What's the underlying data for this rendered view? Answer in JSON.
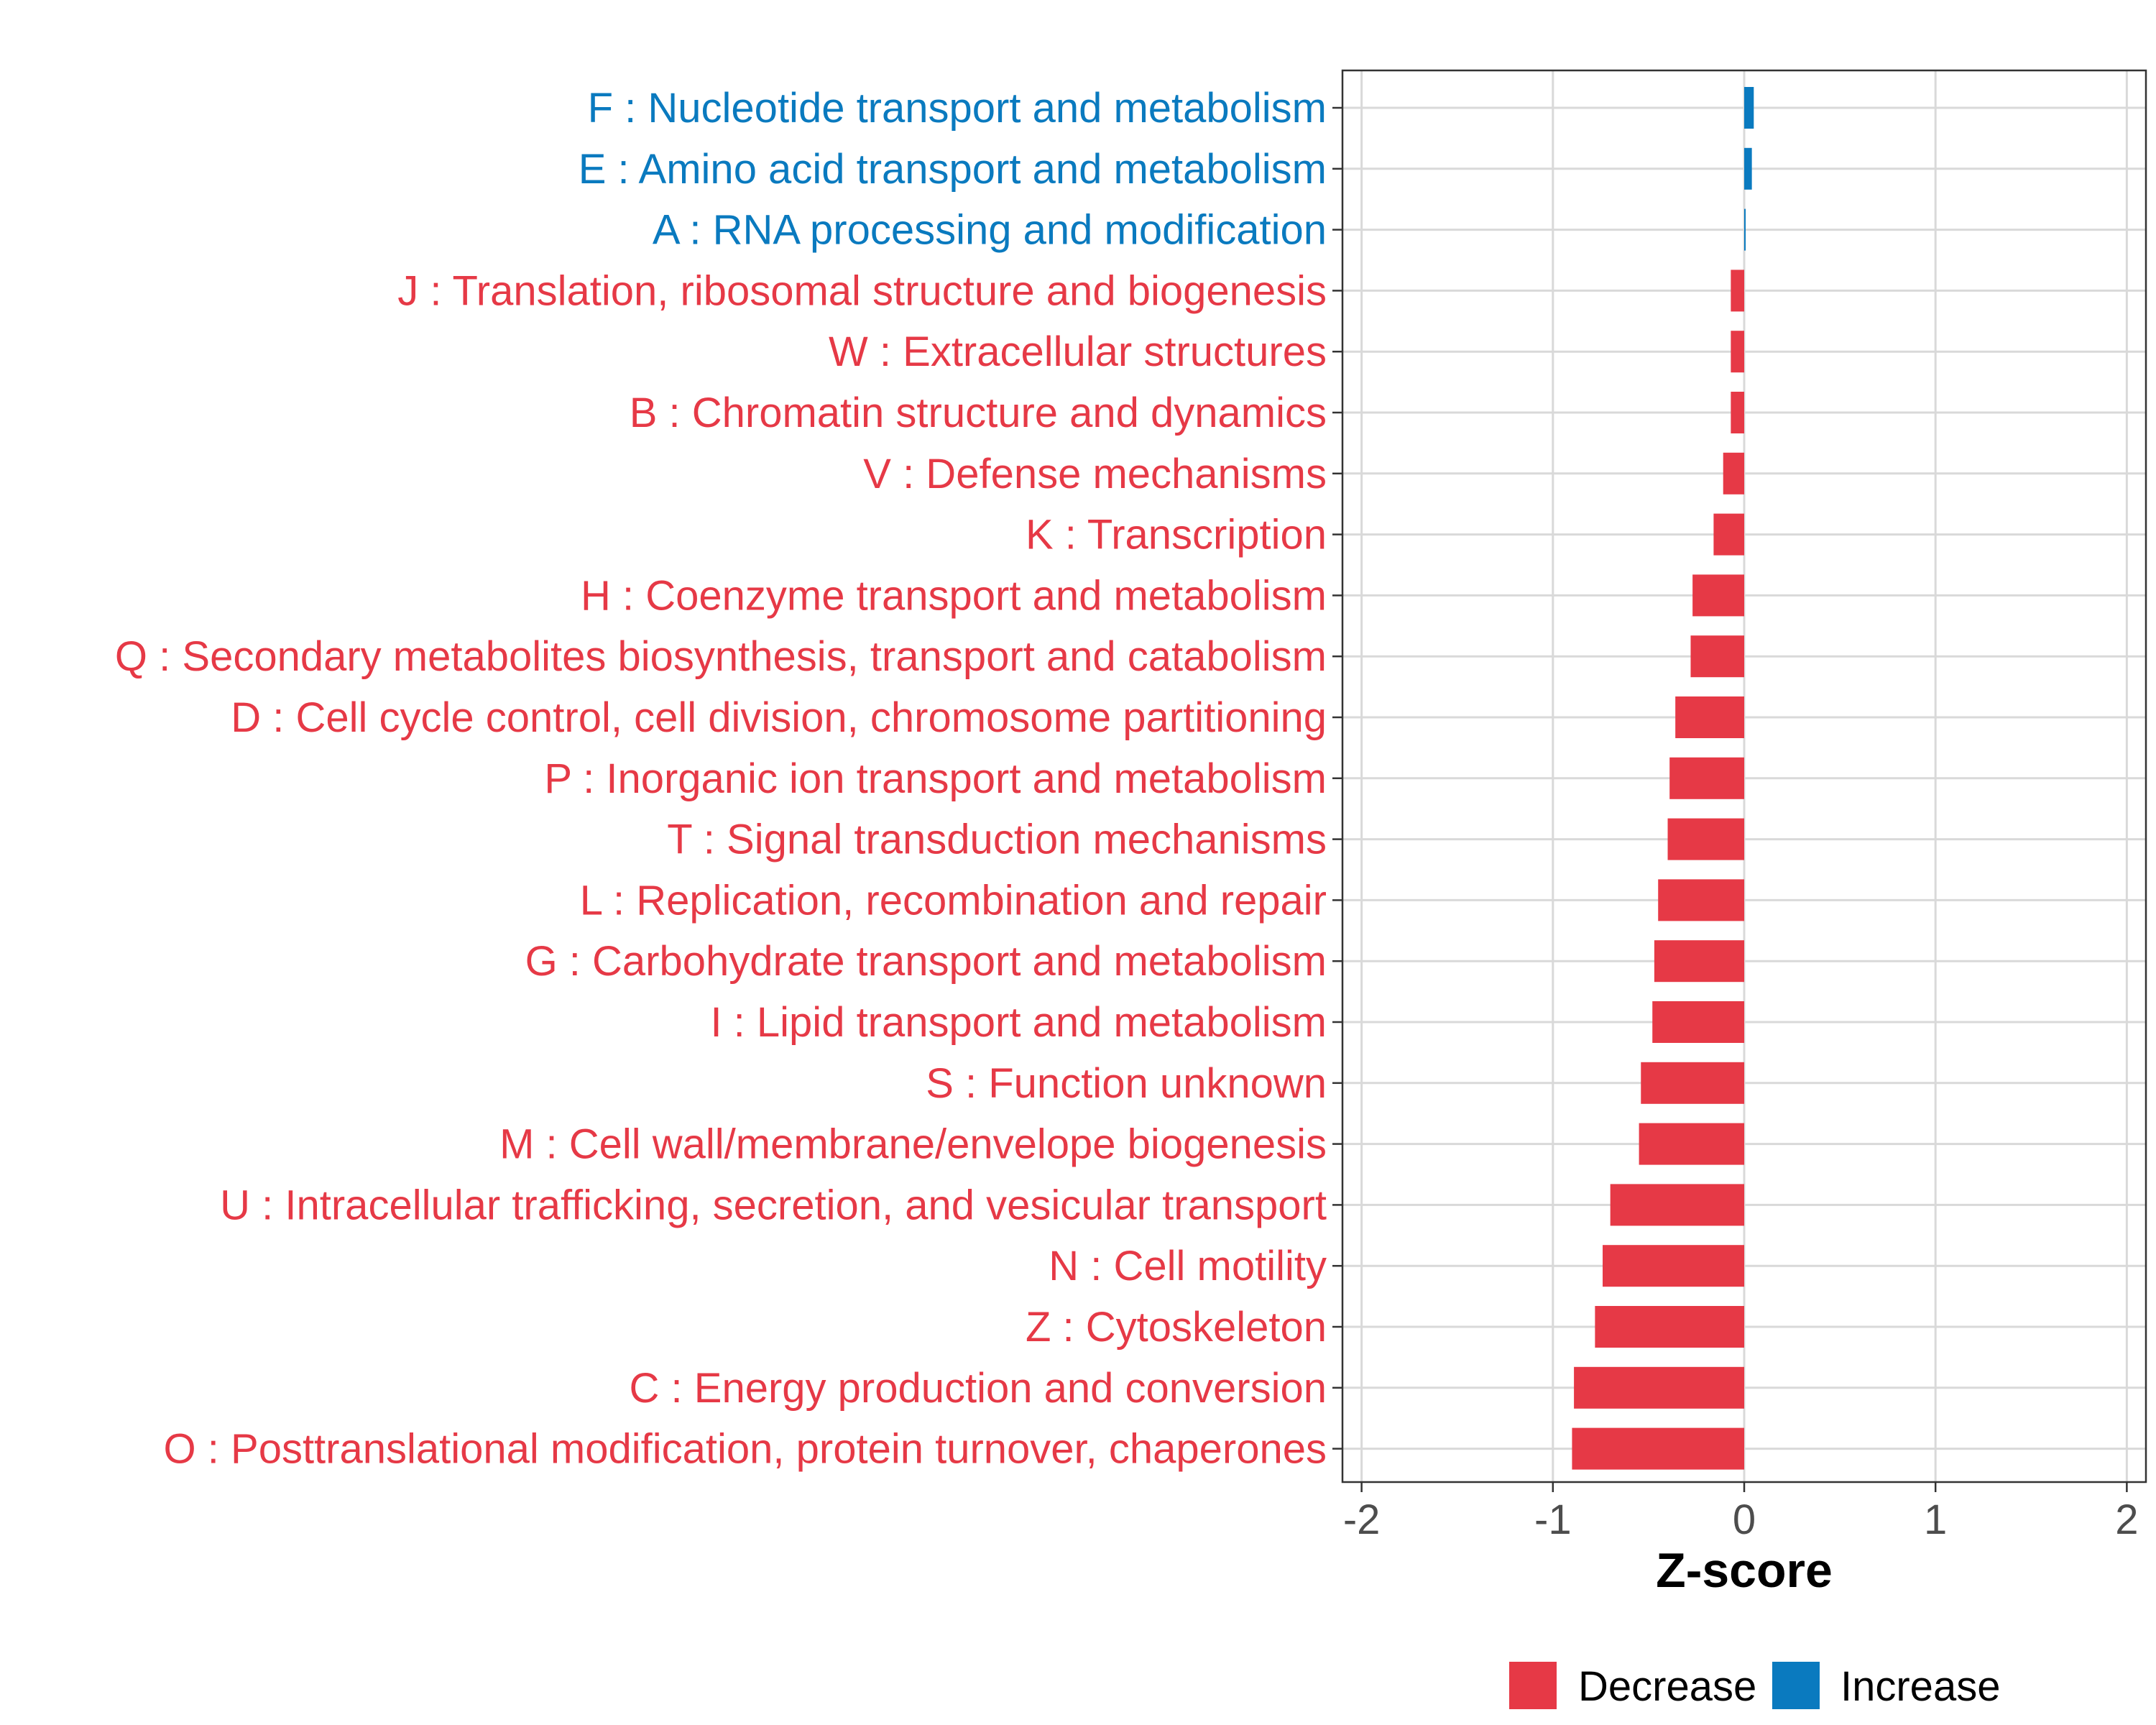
{
  "chart_data": {
    "type": "bar",
    "orientation": "horizontal",
    "title": "",
    "xlabel": "Z-score",
    "ylabel": "",
    "xlim": [
      -2.1,
      2.1
    ],
    "x_ticks": [
      -2,
      -1,
      0,
      1,
      2
    ],
    "x_tick_labels": [
      "-2",
      "-1",
      "0",
      "1",
      "2"
    ],
    "grid": true,
    "categories": [
      "F : Nucleotide transport and metabolism",
      "E : Amino acid transport and metabolism",
      "A : RNA processing and modification",
      "J : Translation, ribosomal structure and biogenesis",
      "W : Extracellular structures",
      "B : Chromatin structure and dynamics",
      "V : Defense mechanisms",
      "K : Transcription",
      "H : Coenzyme transport and metabolism",
      "Q : Secondary metabolites biosynthesis, transport and catabolism",
      "D : Cell cycle control, cell division, chromosome partitioning",
      "P : Inorganic ion transport and metabolism",
      "T : Signal transduction mechanisms",
      "L : Replication, recombination and repair",
      "G : Carbohydrate transport and metabolism",
      "I : Lipid transport and metabolism",
      "S : Function unknown",
      "M : Cell wall/membrane/envelope biogenesis",
      "U : Intracellular trafficking, secretion, and vesicular transport",
      "N : Cell motility",
      "Z : Cytoskeleton",
      "C : Energy production and conversion",
      "O : Posttranslational modification, protein turnover, chaperones"
    ],
    "values": [
      0.05,
      0.04,
      0.005,
      -0.07,
      -0.07,
      -0.07,
      -0.11,
      -0.16,
      -0.27,
      -0.28,
      -0.36,
      -0.39,
      -0.4,
      -0.45,
      -0.47,
      -0.48,
      -0.54,
      -0.55,
      -0.7,
      -0.74,
      -0.78,
      -0.89,
      -0.9
    ],
    "directions": [
      "Increase",
      "Increase",
      "Increase",
      "Decrease",
      "Decrease",
      "Decrease",
      "Decrease",
      "Decrease",
      "Decrease",
      "Decrease",
      "Decrease",
      "Decrease",
      "Decrease",
      "Decrease",
      "Decrease",
      "Decrease",
      "Decrease",
      "Decrease",
      "Decrease",
      "Decrease",
      "Decrease",
      "Decrease",
      "Decrease"
    ],
    "legend": {
      "position": "bottom",
      "entries": [
        {
          "label": "Decrease",
          "color": "#e63946"
        },
        {
          "label": "Increase",
          "color": "#0a7abf"
        }
      ]
    },
    "colors": {
      "Decrease": "#e63946",
      "Increase": "#0a7abf",
      "grid": "#d9d9d9",
      "axis": "#333333",
      "tick_text": "#4d4d4d"
    }
  }
}
